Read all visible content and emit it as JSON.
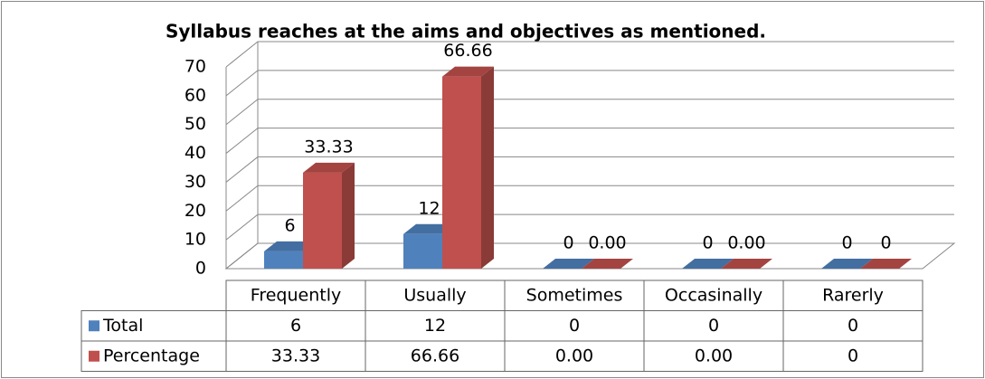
{
  "chart_data": {
    "type": "bar",
    "title": "Syllabus reaches at the aims and objectives as mentioned.",
    "categories": [
      "Frequently",
      "Usually",
      "Sometimes",
      "Occasinally",
      "Rarerly"
    ],
    "series": [
      {
        "name": "Total",
        "color": "#4f81bd",
        "values": [
          6,
          12,
          0,
          0,
          0
        ]
      },
      {
        "name": "Percentage",
        "color": "#c0504d",
        "values": [
          33.33,
          66.66,
          0,
          0,
          0
        ],
        "value_labels": [
          "33.33",
          "66.66",
          "0.00",
          "0.00",
          "0"
        ]
      }
    ],
    "ylim": [
      0,
      70
    ],
    "yticks": [
      0,
      10,
      20,
      30,
      40,
      50,
      60,
      70
    ],
    "grid": true,
    "data_table": true
  }
}
